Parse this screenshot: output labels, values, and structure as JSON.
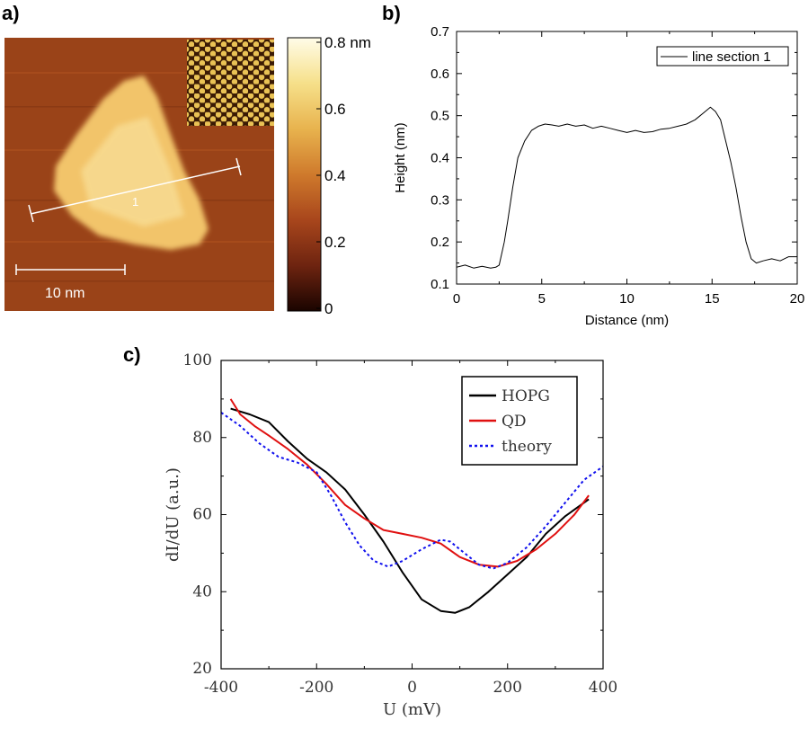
{
  "panels": {
    "a": "a)",
    "b": "b)",
    "c": "c)"
  },
  "stm_image": {
    "scale_bar_label": "10 nm",
    "line_marker_label": "1",
    "colorbar_ticks": [
      "0.8 nm",
      "0.6",
      "0.4",
      "0.2",
      "0"
    ],
    "colorbar_colors": [
      "#fffce8",
      "#f6e08a",
      "#e8b34e",
      "#cf7a2c",
      "#a8461c",
      "#6e2410",
      "#1a0400"
    ],
    "substrate_color": "#9a4318",
    "island_color": "#f2c46a"
  },
  "chart_data": [
    {
      "type": "line",
      "title": "",
      "xlabel": "Distance (nm)",
      "ylabel": "Height (nm)",
      "xlim": [
        0,
        20
      ],
      "ylim": [
        0.1,
        0.7
      ],
      "xticks": [
        "0",
        "5",
        "10",
        "15",
        "20"
      ],
      "yticks": [
        "0.1",
        "0.2",
        "0.3",
        "0.4",
        "0.5",
        "0.6",
        "0.7"
      ],
      "legend": "top-right",
      "series": [
        {
          "name": "line section 1",
          "color": "#000000",
          "x": [
            0,
            0.5,
            1,
            1.5,
            2,
            2.3,
            2.5,
            2.8,
            3,
            3.3,
            3.6,
            4,
            4.4,
            4.8,
            5.2,
            5.6,
            6,
            6.5,
            7,
            7.5,
            8,
            8.5,
            9,
            9.5,
            10,
            10.5,
            11,
            11.5,
            12,
            12.5,
            13,
            13.5,
            14,
            14.3,
            14.6,
            14.9,
            15.2,
            15.5,
            15.8,
            16.1,
            16.4,
            16.7,
            17,
            17.3,
            17.6,
            18,
            18.5,
            19,
            19.5,
            20
          ],
          "y": [
            0.14,
            0.145,
            0.138,
            0.142,
            0.138,
            0.14,
            0.145,
            0.2,
            0.25,
            0.33,
            0.4,
            0.44,
            0.465,
            0.475,
            0.48,
            0.478,
            0.475,
            0.48,
            0.475,
            0.478,
            0.47,
            0.475,
            0.47,
            0.465,
            0.46,
            0.465,
            0.46,
            0.462,
            0.468,
            0.47,
            0.475,
            0.48,
            0.49,
            0.5,
            0.51,
            0.52,
            0.51,
            0.49,
            0.44,
            0.39,
            0.33,
            0.26,
            0.2,
            0.16,
            0.15,
            0.155,
            0.16,
            0.155,
            0.165,
            0.165
          ]
        }
      ]
    },
    {
      "type": "line",
      "title": "",
      "xlabel": "U (mV)",
      "ylabel": "dI/dU (a.u.)",
      "xlim": [
        -400,
        400
      ],
      "ylim": [
        20,
        100
      ],
      "xticks": [
        "-400",
        "-200",
        "0",
        "200",
        "400"
      ],
      "yticks": [
        "20",
        "40",
        "60",
        "80",
        "100"
      ],
      "legend": "top-right",
      "series": [
        {
          "name": "HOPG",
          "color": "#000000",
          "style": "solid",
          "x": [
            -380,
            -340,
            -300,
            -260,
            -220,
            -180,
            -140,
            -100,
            -60,
            -20,
            20,
            60,
            90,
            120,
            160,
            200,
            240,
            280,
            320,
            370
          ],
          "y": [
            87.5,
            86,
            84,
            79,
            74.5,
            71,
            66.5,
            60,
            53,
            45,
            38,
            35,
            34.5,
            36,
            40,
            44.5,
            49,
            55,
            59.5,
            64
          ]
        },
        {
          "name": "QD",
          "color": "#e01010",
          "style": "solid",
          "x": [
            -380,
            -360,
            -330,
            -300,
            -260,
            -220,
            -180,
            -140,
            -100,
            -60,
            -20,
            20,
            60,
            100,
            140,
            180,
            220,
            260,
            300,
            340,
            370
          ],
          "y": [
            90,
            86,
            83,
            80.5,
            77,
            73,
            68,
            62.5,
            59,
            56,
            55,
            54,
            52.5,
            49,
            47,
            46.5,
            48,
            51,
            55,
            60,
            65
          ]
        },
        {
          "name": "theory",
          "color": "#1010ee",
          "style": "dotted",
          "x": [
            -400,
            -360,
            -320,
            -280,
            -240,
            -200,
            -170,
            -140,
            -110,
            -80,
            -50,
            -20,
            20,
            60,
            80,
            110,
            140,
            170,
            200,
            240,
            280,
            320,
            360,
            400
          ],
          "y": [
            86.5,
            83,
            78.5,
            75,
            73.5,
            71,
            65,
            58,
            52,
            48,
            46.5,
            48,
            51,
            53.5,
            53,
            50,
            47,
            46,
            47.5,
            51.5,
            57,
            63,
            69,
            72.5
          ]
        }
      ]
    }
  ]
}
